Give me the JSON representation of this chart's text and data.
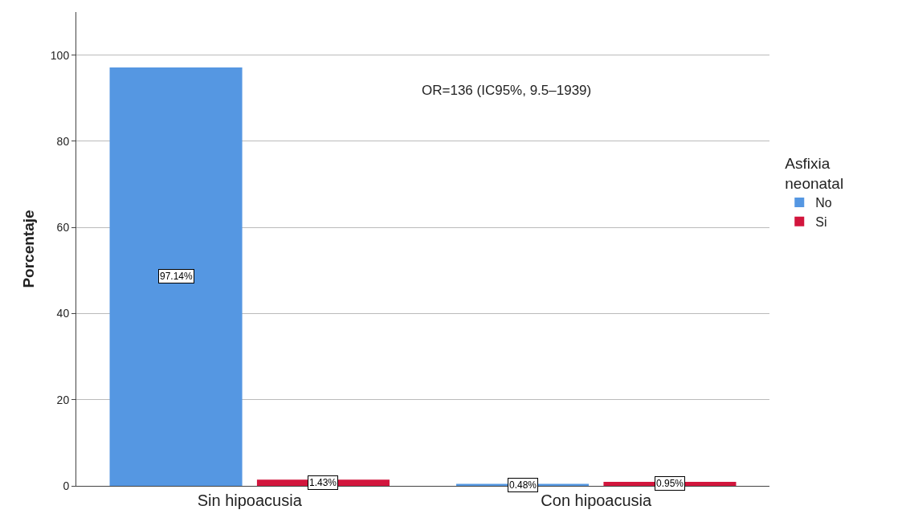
{
  "chart_data": {
    "type": "bar",
    "ylabel": "Porcentaje",
    "legend_title": "Asfixia neonatal",
    "categories": [
      "Sin hipoacusia",
      "Con hipoacusia"
    ],
    "series": [
      {
        "name": "No",
        "color": "#5597e2",
        "values": [
          97.14,
          0.48
        ],
        "value_labels": [
          "97.14%",
          "0.48%"
        ]
      },
      {
        "name": "Si",
        "color": "#d2163d",
        "values": [
          1.43,
          0.95
        ],
        "value_labels": [
          "1.43%",
          "0.95%"
        ]
      }
    ],
    "ylim": [
      0,
      110
    ],
    "yticks": [
      0,
      20,
      40,
      60,
      80,
      100
    ],
    "grid": "y",
    "legend": "right",
    "annotations": [
      "OR=136 (IC95%, 9.5–1939)"
    ]
  }
}
